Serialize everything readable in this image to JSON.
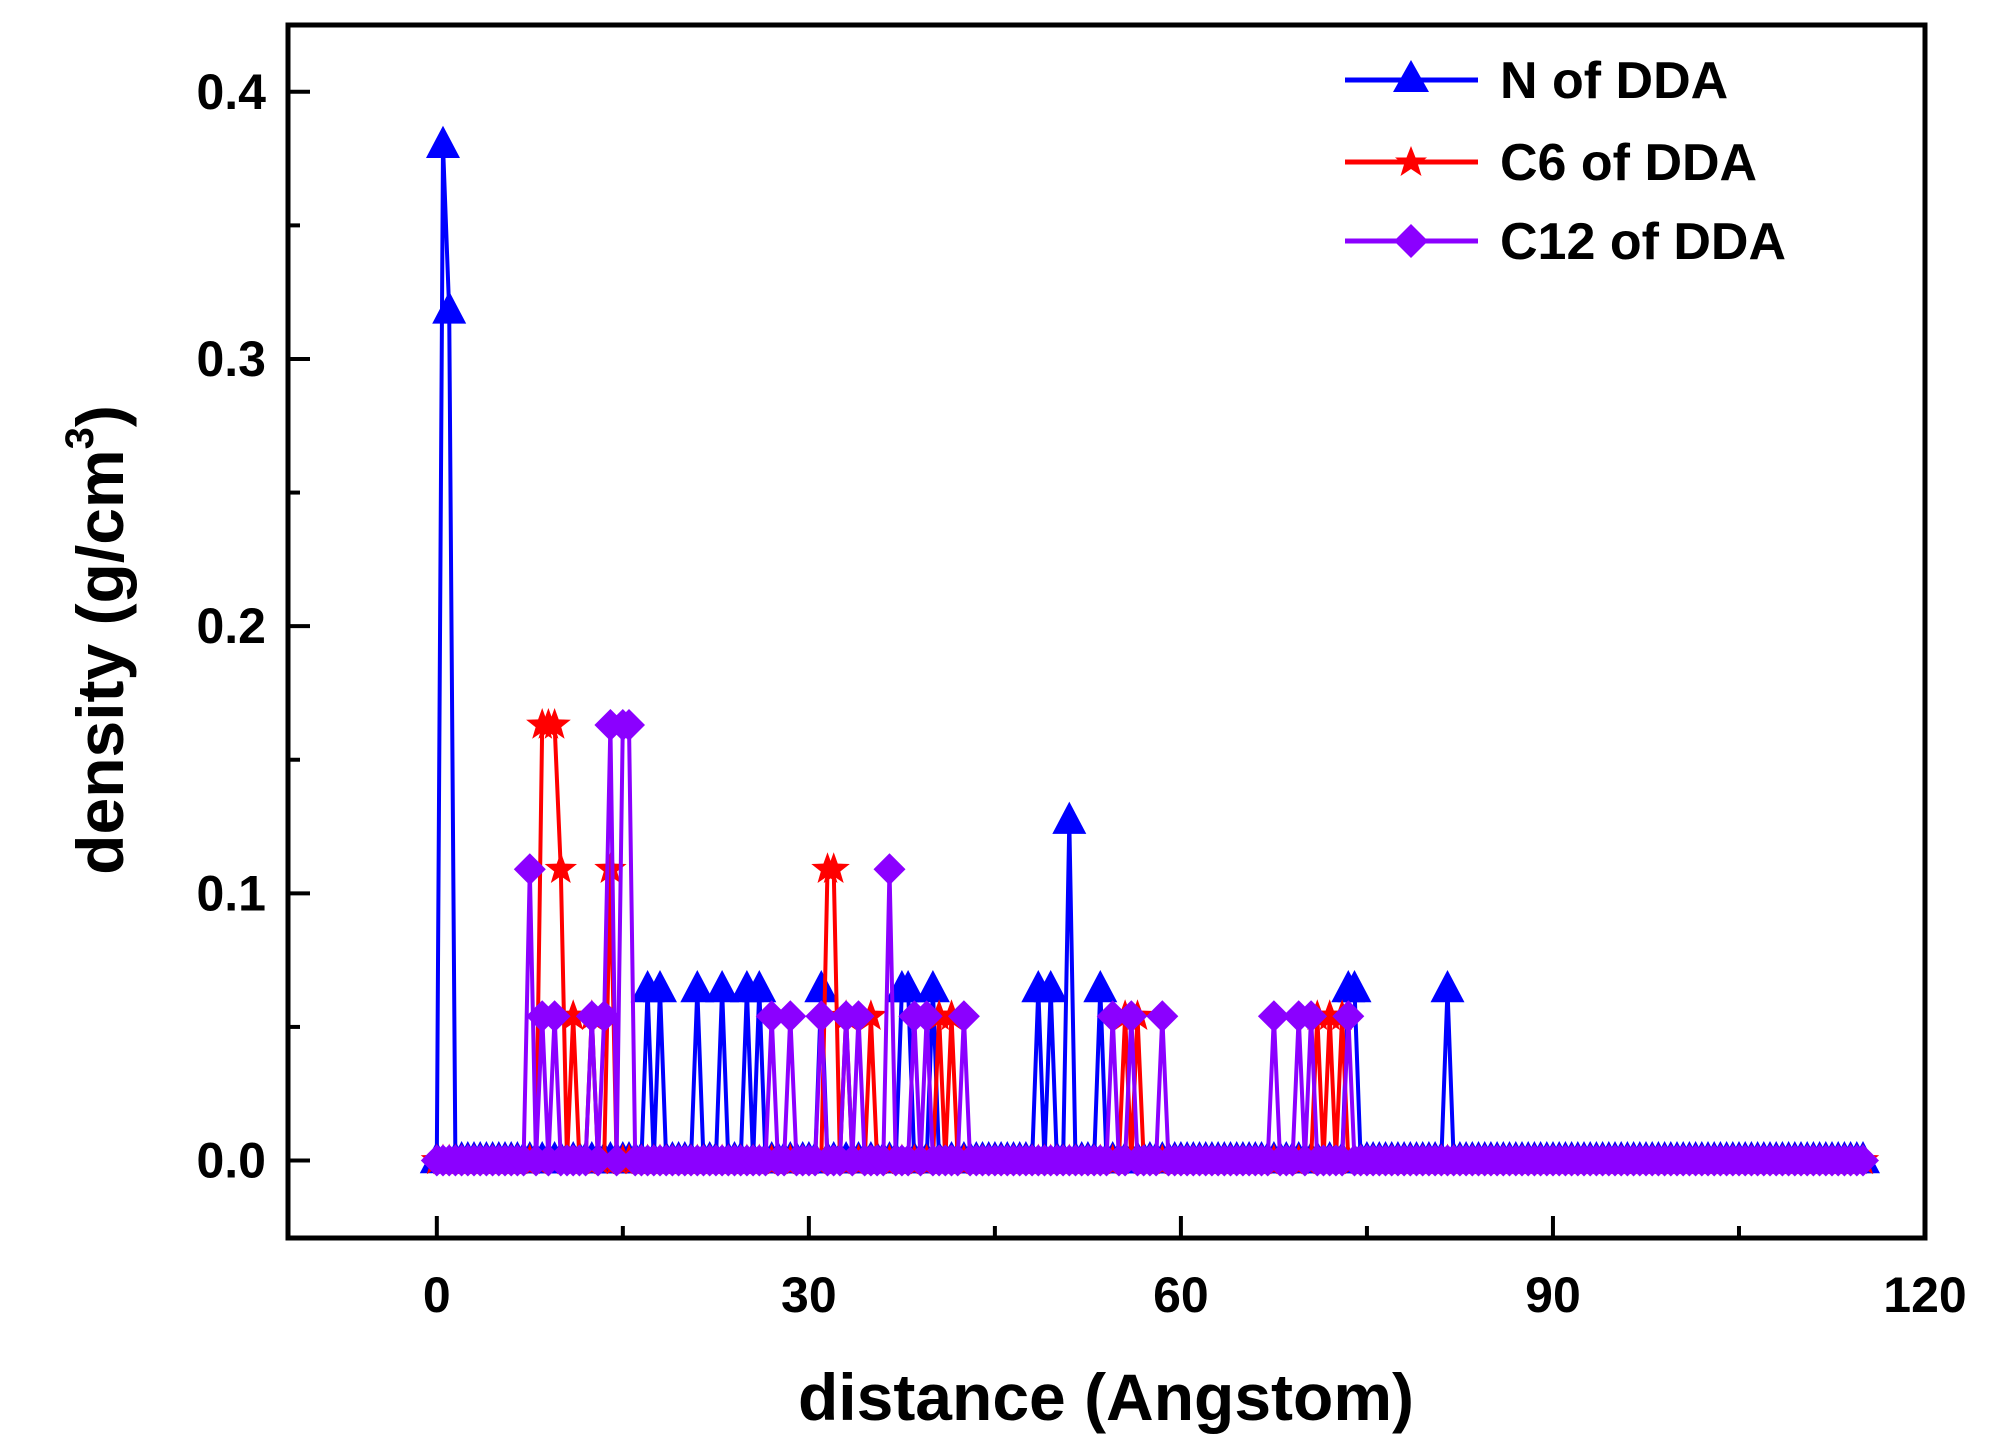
{
  "chart_data": {
    "type": "line",
    "title": "",
    "xlabel": "distance (Angstom)",
    "ylabel_main": "density (g/cm",
    "ylabel_sup": "3",
    "ylabel_close": ")",
    "xlim": [
      -12,
      120
    ],
    "ylim": [
      -0.029,
      0.425
    ],
    "xticks": [
      0,
      30,
      60,
      90,
      120
    ],
    "xtick_labels": [
      "0",
      "30",
      "60",
      "90",
      "120"
    ],
    "yticks": [
      0.0,
      0.1,
      0.2,
      0.3,
      0.4
    ],
    "ytick_labels": [
      "0.0",
      "0.1",
      "0.2",
      "0.3",
      "0.4"
    ],
    "x_start": 0,
    "x_end": 115,
    "x_step": 0.5,
    "legend_position": "top-right",
    "series": [
      {
        "name": "N of DDA",
        "color": "#0000ff",
        "marker": "triangle",
        "peaks": [
          [
            0.5,
            0.38
          ],
          [
            1.0,
            0.318
          ],
          [
            17.0,
            0.064
          ],
          [
            18.0,
            0.064
          ],
          [
            21.0,
            0.064
          ],
          [
            23.0,
            0.064
          ],
          [
            25.0,
            0.064
          ],
          [
            26.0,
            0.064
          ],
          [
            31.0,
            0.064
          ],
          [
            37.5,
            0.064
          ],
          [
            38.0,
            0.064
          ],
          [
            40.0,
            0.064
          ],
          [
            48.5,
            0.064
          ],
          [
            49.5,
            0.064
          ],
          [
            51.0,
            0.127
          ],
          [
            53.5,
            0.064
          ],
          [
            73.5,
            0.064
          ],
          [
            74.0,
            0.064
          ],
          [
            81.5,
            0.064
          ]
        ]
      },
      {
        "name": "C6 of DDA",
        "color": "#ff0000",
        "marker": "star",
        "peaks": [
          [
            8.5,
            0.163
          ],
          [
            9.0,
            0.163
          ],
          [
            9.5,
            0.163
          ],
          [
            10.0,
            0.109
          ],
          [
            11.0,
            0.054
          ],
          [
            12.5,
            0.054
          ],
          [
            14.0,
            0.109
          ],
          [
            31.5,
            0.109
          ],
          [
            32.0,
            0.109
          ],
          [
            33.0,
            0.054
          ],
          [
            35.0,
            0.054
          ],
          [
            40.5,
            0.054
          ],
          [
            41.5,
            0.054
          ],
          [
            55.5,
            0.054
          ],
          [
            56.5,
            0.054
          ],
          [
            71.0,
            0.054
          ],
          [
            72.0,
            0.054
          ],
          [
            73.0,
            0.054
          ]
        ]
      },
      {
        "name": "C12 of DDA",
        "color": "#8b00ff",
        "marker": "diamond",
        "peaks": [
          [
            7.5,
            0.109
          ],
          [
            8.5,
            0.054
          ],
          [
            9.5,
            0.054
          ],
          [
            12.5,
            0.054
          ],
          [
            13.5,
            0.054
          ],
          [
            14.0,
            0.163
          ],
          [
            15.0,
            0.163
          ],
          [
            15.5,
            0.163
          ],
          [
            27.0,
            0.054
          ],
          [
            28.5,
            0.054
          ],
          [
            31.0,
            0.054
          ],
          [
            33.0,
            0.054
          ],
          [
            34.0,
            0.054
          ],
          [
            36.5,
            0.109
          ],
          [
            38.5,
            0.054
          ],
          [
            39.5,
            0.054
          ],
          [
            42.5,
            0.054
          ],
          [
            54.5,
            0.054
          ],
          [
            56.0,
            0.054
          ],
          [
            58.5,
            0.054
          ],
          [
            67.5,
            0.054
          ],
          [
            69.5,
            0.054
          ],
          [
            70.5,
            0.054
          ],
          [
            73.5,
            0.054
          ]
        ]
      }
    ]
  }
}
